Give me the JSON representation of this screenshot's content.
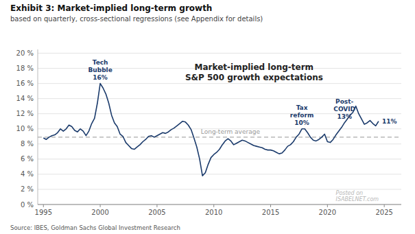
{
  "chart_data": {
    "type": "line",
    "title": "Exhibit 3: Market-implied long-term growth",
    "subtitle": "based on quarterly, cross-sectional regressions (see Appendix for details)",
    "source": "Source: IBES, Goldman Sachs Global Investment Research",
    "watermark": [
      "Market-implied long-term",
      "S&P 500 growth expectations"
    ],
    "credit": "Posted on\nISABELNET.com",
    "color": "#1a3a6b",
    "grid": true,
    "reference_line": {
      "value": 0.089,
      "label": "Long-term average",
      "color": "#aaaaaa"
    },
    "annotations": [
      {
        "text": "Tech\nBubble\n16%",
        "x": 2000.0
      },
      {
        "text": "Tax\nreform\n10%",
        "x": 2017.75
      },
      {
        "text": "Post-\nCOVID\n13%",
        "x": 2021.5
      },
      {
        "text": "11%",
        "x": 2024.5
      }
    ],
    "xlim": [
      1994.5,
      2026.5
    ],
    "ylim": [
      0.0,
      0.205
    ],
    "xticks": [
      1995,
      2000,
      2005,
      2010,
      2015,
      2020,
      2025
    ],
    "yticks": [
      {
        "value": 0.0,
        "label": "0 %"
      },
      {
        "value": 0.02,
        "label": "2 %"
      },
      {
        "value": 0.04,
        "label": "4 %"
      },
      {
        "value": 0.06,
        "label": "6 %"
      },
      {
        "value": 0.08,
        "label": "8 %"
      },
      {
        "value": 0.1,
        "label": "10 %"
      },
      {
        "value": 0.12,
        "label": "12 %"
      },
      {
        "value": 0.14,
        "label": "14 %"
      },
      {
        "value": 0.16,
        "label": "16 %"
      },
      {
        "value": 0.18,
        "label": "18 %"
      },
      {
        "value": 0.2,
        "label": "20 %"
      }
    ],
    "x": [
      1995.0,
      1995.25,
      1995.5,
      1995.75,
      1996.0,
      1996.25,
      1996.5,
      1996.75,
      1997.0,
      1997.25,
      1997.5,
      1997.75,
      1998.0,
      1998.25,
      1998.5,
      1998.75,
      1999.0,
      1999.25,
      1999.5,
      1999.75,
      2000.0,
      2000.25,
      2000.5,
      2000.75,
      2001.0,
      2001.25,
      2001.5,
      2001.75,
      2002.0,
      2002.25,
      2002.5,
      2002.75,
      2003.0,
      2003.25,
      2003.5,
      2003.75,
      2004.0,
      2004.25,
      2004.5,
      2004.75,
      2005.0,
      2005.25,
      2005.5,
      2005.75,
      2006.0,
      2006.25,
      2006.5,
      2006.75,
      2007.0,
      2007.25,
      2007.5,
      2007.75,
      2008.0,
      2008.25,
      2008.5,
      2008.75,
      2009.0,
      2009.25,
      2009.5,
      2009.75,
      2010.0,
      2010.25,
      2010.5,
      2010.75,
      2011.0,
      2011.25,
      2011.5,
      2011.75,
      2012.0,
      2012.25,
      2012.5,
      2012.75,
      2013.0,
      2013.25,
      2013.5,
      2013.75,
      2014.0,
      2014.25,
      2014.5,
      2014.75,
      2015.0,
      2015.25,
      2015.5,
      2015.75,
      2016.0,
      2016.25,
      2016.5,
      2016.75,
      2017.0,
      2017.25,
      2017.5,
      2017.75,
      2018.0,
      2018.25,
      2018.5,
      2018.75,
      2019.0,
      2019.25,
      2019.5,
      2019.75,
      2020.0,
      2020.25,
      2020.5,
      2020.75,
      2021.0,
      2021.25,
      2021.5,
      2021.75,
      2022.0,
      2022.25,
      2022.5,
      2022.75,
      2023.0,
      2023.25,
      2023.5,
      2023.75,
      2024.0,
      2024.25,
      2024.5
    ],
    "values": [
      0.088,
      0.086,
      0.089,
      0.091,
      0.092,
      0.095,
      0.1,
      0.097,
      0.1,
      0.105,
      0.103,
      0.098,
      0.096,
      0.1,
      0.097,
      0.091,
      0.097,
      0.107,
      0.114,
      0.134,
      0.16,
      0.154,
      0.146,
      0.134,
      0.118,
      0.108,
      0.103,
      0.093,
      0.09,
      0.082,
      0.078,
      0.074,
      0.073,
      0.076,
      0.079,
      0.083,
      0.086,
      0.09,
      0.091,
      0.089,
      0.091,
      0.093,
      0.095,
      0.094,
      0.096,
      0.099,
      0.101,
      0.104,
      0.107,
      0.11,
      0.109,
      0.105,
      0.099,
      0.088,
      0.076,
      0.06,
      0.038,
      0.042,
      0.053,
      0.062,
      0.066,
      0.069,
      0.073,
      0.079,
      0.084,
      0.087,
      0.084,
      0.079,
      0.081,
      0.083,
      0.085,
      0.084,
      0.082,
      0.08,
      0.078,
      0.077,
      0.076,
      0.075,
      0.073,
      0.072,
      0.072,
      0.071,
      0.069,
      0.067,
      0.068,
      0.072,
      0.077,
      0.079,
      0.083,
      0.089,
      0.093,
      0.1,
      0.1,
      0.095,
      0.089,
      0.085,
      0.084,
      0.086,
      0.089,
      0.093,
      0.083,
      0.082,
      0.086,
      0.092,
      0.097,
      0.102,
      0.108,
      0.113,
      0.118,
      0.122,
      0.13,
      0.12,
      0.113,
      0.106,
      0.108,
      0.111,
      0.107,
      0.104,
      0.11
    ]
  }
}
